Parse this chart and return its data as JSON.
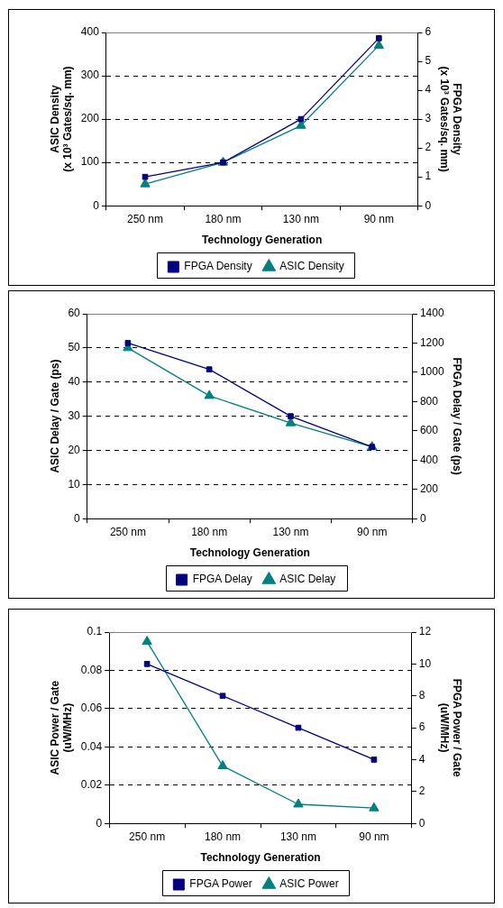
{
  "chart_data": [
    {
      "type": "line",
      "xlabel": "Technology Generation",
      "ylabel": "ASIC Density\n(x 10³ Gates/sq. mm)",
      "y2label": "FPGA Density\n(x 10³ Gates/sq. mm)",
      "categories": [
        "250 nm",
        "180 nm",
        "130 nm",
        "90 nm"
      ],
      "series": [
        {
          "name": "ASIC Density",
          "color": "#008080",
          "marker": "triangle",
          "values": [
            50,
            100,
            185,
            370
          ]
        },
        {
          "name": "FPGA Density",
          "color": "#000080",
          "marker": "square",
          "axis": "y2",
          "values": [
            1,
            1.5,
            3,
            5.8
          ]
        }
      ],
      "ylim": [
        0,
        400
      ],
      "yticks": [
        0,
        100,
        200,
        300,
        400
      ],
      "y2lim": [
        0,
        6
      ],
      "y2ticks": [
        0,
        1,
        2,
        3,
        4,
        5,
        6
      ],
      "grid": "y",
      "legend": "bottom",
      "line_style": "solid"
    },
    {
      "type": "line",
      "xlabel": "Technology Generation",
      "ylabel": "ASIC Delay / Gate (ps)",
      "y2label": "FPGA Delay / Gate (ps)",
      "categories": [
        "250 nm",
        "180 nm",
        "130 nm",
        "90 nm"
      ],
      "series": [
        {
          "name": "ASIC Delay",
          "color": "#008080",
          "marker": "triangle",
          "values": [
            50,
            36,
            28,
            21
          ]
        },
        {
          "name": "FPGA Delay",
          "color": "#000080",
          "marker": "square",
          "axis": "y2",
          "values": [
            1200,
            1020,
            700,
            490
          ]
        }
      ],
      "ylim": [
        0,
        60
      ],
      "yticks": [
        0,
        10,
        20,
        30,
        40,
        50,
        60
      ],
      "y2lim": [
        0,
        1400
      ],
      "y2ticks": [
        0,
        200,
        400,
        600,
        800,
        1000,
        1200,
        1400
      ],
      "grid": "y",
      "legend": "bottom",
      "line_style": "solid"
    },
    {
      "type": "line",
      "xlabel": "Technology Generation",
      "ylabel": "ASIC Power / Gate\n(uW/MHz)",
      "y2label": "FPGA Power / Gate\n(uW/MHz)",
      "categories": [
        "250 nm",
        "180 nm",
        "130 nm",
        "90 nm"
      ],
      "series": [
        {
          "name": "ASIC Power",
          "color": "#008080",
          "marker": "triangle",
          "values": [
            0.095,
            0.03,
            0.01,
            0.008
          ]
        },
        {
          "name": "FPGA Power",
          "color": "#000080",
          "marker": "square",
          "axis": "y2",
          "values": [
            10,
            8,
            6,
            4
          ]
        }
      ],
      "ylim": [
        0,
        0.1
      ],
      "yticks": [
        0,
        0.02,
        0.04,
        0.06,
        0.08,
        0.1
      ],
      "y2lim": [
        0,
        12
      ],
      "y2ticks": [
        0,
        2,
        4,
        6,
        8,
        10,
        12
      ],
      "grid": "y",
      "legend": "bottom",
      "line_style": "solid"
    }
  ]
}
